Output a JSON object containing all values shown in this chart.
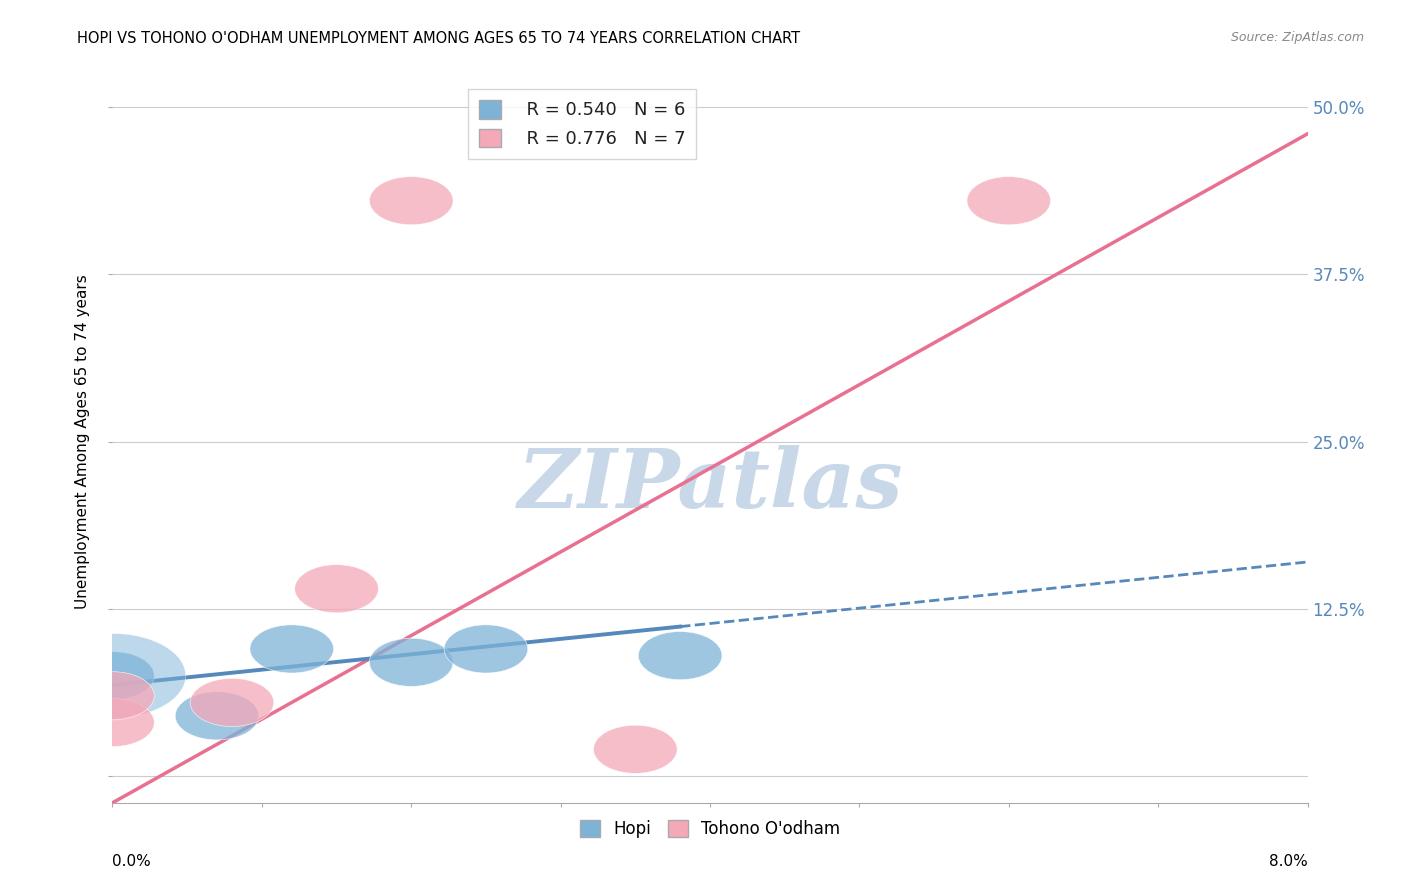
{
  "title": "HOPI VS TOHONO O'ODHAM UNEMPLOYMENT AMONG AGES 65 TO 74 YEARS CORRELATION CHART",
  "source": "Source: ZipAtlas.com",
  "ylabel": "Unemployment Among Ages 65 to 74 years",
  "xlim": [
    0.0,
    0.08
  ],
  "ylim": [
    -0.02,
    0.52
  ],
  "yticks": [
    0.0,
    0.125,
    0.25,
    0.375,
    0.5
  ],
  "ytick_labels": [
    "",
    "12.5%",
    "25.0%",
    "37.5%",
    "50.0%"
  ],
  "xticks": [
    0.0,
    0.01,
    0.02,
    0.03,
    0.04,
    0.05,
    0.06,
    0.07,
    0.08
  ],
  "hopi_x": [
    0.0,
    0.007,
    0.012,
    0.02,
    0.025,
    0.038
  ],
  "hopi_y": [
    0.075,
    0.045,
    0.095,
    0.085,
    0.095,
    0.09
  ],
  "tohono_x": [
    0.0,
    0.008,
    0.015,
    0.02,
    0.035,
    0.06,
    0.0
  ],
  "tohono_y": [
    0.04,
    0.055,
    0.14,
    0.43,
    0.02,
    0.43,
    0.06
  ],
  "hopi_color": "#7EB3D8",
  "tohono_color": "#F4A8B8",
  "hopi_line_color": "#5588BB",
  "tohono_line_color": "#E87090",
  "hopi_R": 0.54,
  "hopi_N": 6,
  "tohono_R": 0.776,
  "tohono_N": 7,
  "hopi_line_x_solid_end": 0.038,
  "watermark_text": "ZIPatlas",
  "watermark_color": "#C8D8E8",
  "grid_color": "#CCCCCC",
  "bg_color": "#FFFFFF"
}
